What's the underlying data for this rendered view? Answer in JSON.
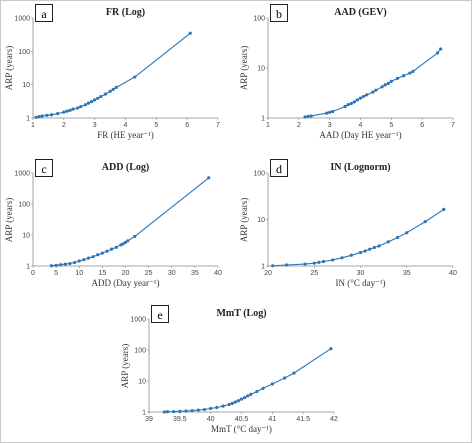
{
  "chart_data": [
    {
      "type": "line",
      "panel_label": "a",
      "title": "FR (Log)",
      "xlabel": "FR (HE year⁻¹)",
      "ylabel": "ARP (years)",
      "xlim": [
        1,
        7
      ],
      "ylim": [
        1,
        1000
      ],
      "ylog": true,
      "xticks": [
        "1",
        "2",
        "3",
        "4",
        "5",
        "6",
        "7"
      ],
      "yticks": [
        "1",
        "10",
        "100",
        "1000"
      ],
      "color": "#2e75b6",
      "x": [
        1.1,
        1.2,
        1.3,
        1.45,
        1.6,
        1.8,
        2.0,
        2.1,
        2.2,
        2.3,
        2.45,
        2.55,
        2.7,
        2.8,
        2.9,
        3.0,
        3.1,
        3.2,
        3.35,
        3.5,
        3.6,
        3.7,
        4.3,
        6.1
      ],
      "y": [
        1.05,
        1.1,
        1.15,
        1.2,
        1.25,
        1.35,
        1.5,
        1.6,
        1.7,
        1.85,
        2.0,
        2.2,
        2.5,
        2.8,
        3.1,
        3.5,
        3.9,
        4.4,
        5.2,
        6.3,
        7.2,
        8.3,
        17,
        350
      ]
    },
    {
      "type": "line",
      "panel_label": "b",
      "title": "AAD (GEV)",
      "xlabel": "AAD (Day HE year⁻¹)",
      "ylabel": "ARP (years)",
      "xlim": [
        1,
        7
      ],
      "ylim": [
        1,
        100
      ],
      "ylog": true,
      "xticks": [
        "1",
        "2",
        "3",
        "4",
        "5",
        "6",
        "7"
      ],
      "yticks": [
        "1",
        "10",
        "100"
      ],
      "color": "#2e75b6",
      "x": [
        2.2,
        2.3,
        2.4,
        2.9,
        3.0,
        3.1,
        3.5,
        3.6,
        3.7,
        3.8,
        3.9,
        4.0,
        4.1,
        4.2,
        4.4,
        4.5,
        4.7,
        4.8,
        4.9,
        5.0,
        5.2,
        5.4,
        5.6,
        5.7,
        6.5,
        6.6
      ],
      "y": [
        1.05,
        1.08,
        1.1,
        1.25,
        1.3,
        1.35,
        1.7,
        1.85,
        1.95,
        2.1,
        2.3,
        2.5,
        2.7,
        2.9,
        3.3,
        3.6,
        4.2,
        4.6,
        4.9,
        5.4,
        6.2,
        7.0,
        7.9,
        8.5,
        20,
        24
      ]
    },
    {
      "type": "line",
      "panel_label": "c",
      "title": "ADD (Log)",
      "xlabel": "ADD (Day year⁻¹)",
      "ylabel": "ARP (years)",
      "xlim": [
        0,
        40
      ],
      "ylim": [
        1,
        1000
      ],
      "ylog": true,
      "xticks": [
        "0",
        "5",
        "10",
        "15",
        "20",
        "25",
        "30",
        "35",
        "40"
      ],
      "yticks": [
        "1",
        "10",
        "100",
        "1000"
      ],
      "color": "#2e75b6",
      "x": [
        4,
        5,
        6,
        7,
        8,
        9,
        10,
        11,
        12,
        13,
        14,
        15,
        16,
        17,
        18,
        19,
        19.5,
        20,
        20.5,
        22,
        38
      ],
      "y": [
        1.02,
        1.05,
        1.1,
        1.15,
        1.2,
        1.3,
        1.45,
        1.6,
        1.8,
        2.0,
        2.3,
        2.6,
        3.0,
        3.5,
        4.0,
        4.8,
        5.2,
        5.8,
        6.5,
        9.0,
        700
      ]
    },
    {
      "type": "line",
      "panel_label": "d",
      "title": "IN (Lognorm)",
      "xlabel": "IN (°C day⁻¹)",
      "ylabel": "ARP (years)",
      "xlim": [
        20,
        40
      ],
      "ylim": [
        1,
        100
      ],
      "ylog": true,
      "xticks": [
        "20",
        "25",
        "30",
        "35",
        "40"
      ],
      "yticks": [
        "1",
        "10",
        "100"
      ],
      "color": "#2e75b6",
      "x": [
        20.5,
        22,
        24,
        25,
        25.5,
        26,
        27,
        28,
        29,
        30,
        30.5,
        31,
        31.5,
        32,
        33,
        34,
        35,
        37,
        39
      ],
      "y": [
        1.01,
        1.05,
        1.1,
        1.15,
        1.2,
        1.25,
        1.35,
        1.5,
        1.7,
        1.95,
        2.1,
        2.3,
        2.5,
        2.7,
        3.3,
        4.1,
        5.2,
        9.0,
        16.5
      ]
    },
    {
      "type": "line",
      "panel_label": "e",
      "title": "MmT (Log)",
      "xlabel": "MmT (°C day⁻¹)",
      "ylabel": "ARP (years)",
      "xlim": [
        39,
        42
      ],
      "ylim": [
        1,
        1000
      ],
      "ylog": true,
      "xticks": [
        "39",
        "39.5",
        "40",
        "40.5",
        "41",
        "41.5",
        "42"
      ],
      "yticks": [
        "1",
        "10",
        "100",
        "1000"
      ],
      "color": "#2e75b6",
      "x": [
        39.25,
        39.3,
        39.4,
        39.5,
        39.6,
        39.7,
        39.8,
        39.9,
        40.0,
        40.1,
        40.2,
        40.3,
        40.35,
        40.4,
        40.45,
        40.5,
        40.55,
        40.6,
        40.65,
        40.75,
        40.85,
        41.0,
        41.2,
        41.35,
        41.95
      ],
      "y": [
        1.0,
        1.02,
        1.03,
        1.05,
        1.08,
        1.1,
        1.15,
        1.2,
        1.3,
        1.4,
        1.55,
        1.75,
        1.9,
        2.1,
        2.3,
        2.6,
        2.9,
        3.3,
        3.7,
        4.6,
        5.8,
        8.0,
        12.5,
        18,
        110
      ]
    }
  ]
}
